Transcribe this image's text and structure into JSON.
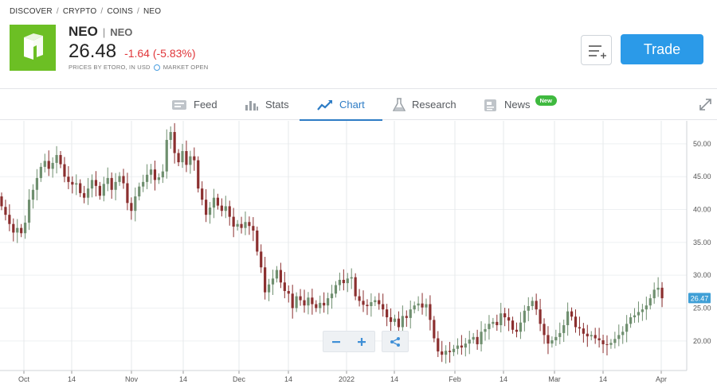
{
  "breadcrumb": [
    "DISCOVER",
    "CRYPTO",
    "COINS",
    "NEO"
  ],
  "asset": {
    "name": "NEO",
    "ticker": "NEO",
    "price": "26.48",
    "change": "-1.64 (-5.83%)",
    "price_source": "PRICES BY ETORO, IN USD",
    "market_status": "MARKET OPEN",
    "logo_color": "#6cbf24"
  },
  "actions": {
    "watchlist_icon": "add-to-watchlist-icon",
    "trade_label": "Trade"
  },
  "tabs": [
    {
      "label": "Feed",
      "icon": "feed-icon",
      "active": false
    },
    {
      "label": "Stats",
      "icon": "stats-icon",
      "active": false
    },
    {
      "label": "Chart",
      "icon": "chart-icon",
      "active": true
    },
    {
      "label": "Research",
      "icon": "flask-icon",
      "active": false
    },
    {
      "label": "News",
      "icon": "news-icon",
      "active": false,
      "badge": "New"
    }
  ],
  "colors": {
    "accent": "#2b9ae8",
    "up": "#6f8f6f",
    "down": "#8b2f2f",
    "negative": "#e0363a",
    "badge": "#3fb93f"
  },
  "chart_data": {
    "type": "candlestick",
    "y_axis": {
      "ticks": [
        "20.00",
        "25.00",
        "30.00",
        "35.00",
        "40.00",
        "45.00",
        "50.00"
      ],
      "ylim": [
        15.5,
        53.5
      ]
    },
    "x_axis": {
      "ticks": [
        "Oct",
        "14",
        "Nov",
        "14",
        "Dec",
        "14",
        "2022",
        "14",
        "Feb",
        "14",
        "Mar",
        "14",
        "Apr"
      ]
    },
    "last_price_label": "26.47",
    "grid": true,
    "closes": [
      40.5,
      39.2,
      37.8,
      36.5,
      37.2,
      36.4,
      38.0,
      41.5,
      43.0,
      44.8,
      46.5,
      47.4,
      46.2,
      47.1,
      48.3,
      46.9,
      45.0,
      44.2,
      43.8,
      44.0,
      42.5,
      41.8,
      43.2,
      44.5,
      43.6,
      42.1,
      43.9,
      44.8,
      43.0,
      44.2,
      45.1,
      44.0,
      41.0,
      39.8,
      42.0,
      43.5,
      44.2,
      45.3,
      46.1,
      44.5,
      44.9,
      45.8,
      50.6,
      51.8,
      48.6,
      47.2,
      48.9,
      46.8,
      48.1,
      47.5,
      43.2,
      41.5,
      39.2,
      40.3,
      41.8,
      40.6,
      39.8,
      40.5,
      38.9,
      37.4,
      37.8,
      37.2,
      38.1,
      37.5,
      36.8,
      33.6,
      31.2,
      27.4,
      28.6,
      29.5,
      30.8,
      28.9,
      27.6,
      27.2,
      25.0,
      26.8,
      26.2,
      25.4,
      26.6,
      25.6,
      25.0,
      25.8,
      25.4,
      26.5,
      27.2,
      28.5,
      29.3,
      28.8,
      29.5,
      29.7,
      26.8,
      26.1,
      25.5,
      25.3,
      25.9,
      26.2,
      25.6,
      24.8,
      23.6,
      22.9,
      23.4,
      22.1,
      23.8,
      23.5,
      24.8,
      25.4,
      25.7,
      25.1,
      25.6,
      23.2,
      20.4,
      18.4,
      17.9,
      18.5,
      18.3,
      18.8,
      19.3,
      19.0,
      19.6,
      20.2,
      20.6,
      19.5,
      21.4,
      21.8,
      22.6,
      22.9,
      22.4,
      24.2,
      23.6,
      23.1,
      21.7,
      21.4,
      22.8,
      24.6,
      25.3,
      26.1,
      24.8,
      22.6,
      20.9,
      19.6,
      20.1,
      20.6,
      21.2,
      22.4,
      24.5,
      23.7,
      22.1,
      21.9,
      21.1,
      20.7,
      20.9,
      20.4,
      20.1,
      19.5,
      19.4,
      19.7,
      20.3,
      20.9,
      21.4,
      22.6,
      23.6,
      23.9,
      24.4,
      24.8,
      25.4,
      26.5,
      27.8,
      28.1,
      26.5
    ],
    "opens": [
      42.0,
      40.4,
      39.2,
      37.8,
      36.5,
      37.2,
      36.4,
      38.0,
      41.5,
      43.0,
      44.8,
      46.5,
      47.4,
      46.2,
      47.1,
      48.3,
      46.9,
      45.0,
      44.2,
      43.8,
      44.0,
      42.5,
      41.8,
      43.2,
      44.5,
      43.6,
      42.1,
      43.9,
      44.8,
      43.0,
      44.2,
      45.1,
      44.0,
      41.0,
      39.8,
      42.0,
      43.5,
      44.2,
      45.3,
      46.1,
      44.5,
      44.9,
      45.8,
      50.6,
      51.8,
      48.6,
      47.2,
      48.9,
      46.8,
      48.1,
      47.5,
      43.2,
      41.5,
      39.2,
      40.3,
      41.8,
      40.6,
      39.8,
      40.5,
      38.9,
      37.4,
      37.8,
      37.2,
      38.1,
      37.5,
      36.8,
      33.6,
      31.2,
      27.4,
      28.6,
      29.5,
      30.8,
      28.9,
      27.6,
      27.2,
      25.0,
      26.8,
      26.2,
      25.4,
      26.6,
      25.6,
      25.0,
      25.8,
      25.4,
      26.5,
      27.2,
      28.5,
      29.3,
      28.8,
      29.5,
      29.7,
      26.8,
      26.1,
      25.5,
      25.3,
      25.9,
      26.2,
      25.6,
      24.8,
      23.6,
      22.9,
      23.4,
      22.1,
      23.8,
      23.5,
      24.8,
      25.4,
      25.7,
      25.1,
      25.6,
      23.2,
      20.4,
      18.4,
      17.9,
      18.5,
      18.3,
      18.8,
      19.3,
      19.0,
      19.6,
      20.2,
      20.6,
      19.5,
      21.4,
      21.8,
      22.6,
      22.9,
      22.4,
      24.2,
      23.6,
      23.1,
      21.7,
      21.4,
      22.8,
      24.6,
      25.3,
      26.1,
      24.8,
      22.6,
      20.9,
      19.6,
      20.1,
      20.6,
      21.2,
      22.4,
      24.5,
      23.7,
      22.1,
      21.9,
      21.1,
      20.7,
      20.9,
      20.4,
      20.1,
      19.5,
      19.4,
      19.7,
      20.3,
      20.9,
      21.4,
      22.6,
      23.6,
      23.9,
      24.4,
      24.8,
      25.4,
      26.5,
      27.8,
      28.1
    ]
  }
}
